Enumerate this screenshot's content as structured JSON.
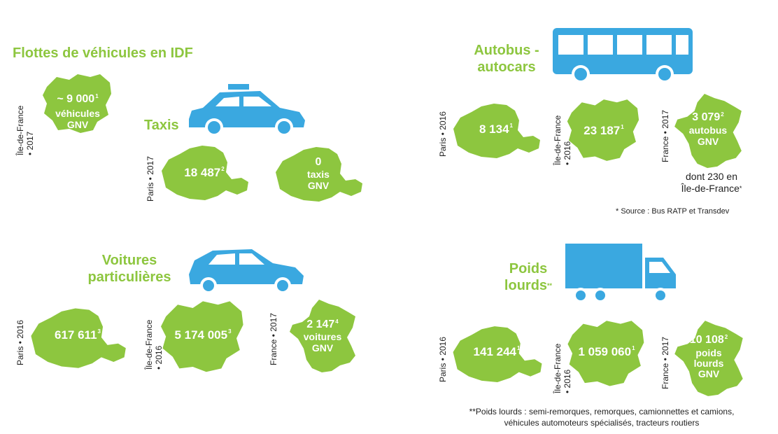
{
  "colors": {
    "green": "#8dc63f",
    "blue": "#3aa8e0",
    "white": "#ffffff",
    "text": "#222222"
  },
  "title": "Flottes de véhicules en IDF",
  "idf_total": {
    "label": "Île-de-France\n• 2017",
    "value": "~ 9 000",
    "sup": "1",
    "line2": "véhicules",
    "line3": "GNV"
  },
  "taxis": {
    "heading": "Taxis",
    "icon": "taxi-icon",
    "label": "Paris • 2017",
    "paris": {
      "value": "18 487",
      "sup": "2"
    },
    "gnv": {
      "value": "0",
      "line2": "taxis",
      "line3": "GNV"
    }
  },
  "voitures": {
    "heading_line1": "Voitures",
    "heading_line2": "particulières",
    "icon": "car-icon",
    "paris": {
      "label": "Paris • 2016",
      "value": "617 611",
      "sup": "3"
    },
    "idf": {
      "label1": "Île-de-France",
      "label2": "• 2016",
      "value": "5 174 005",
      "sup": "3"
    },
    "france": {
      "label": "France • 2017",
      "value": "2 147",
      "sup": "4",
      "line2": "voitures",
      "line3": "GNV"
    }
  },
  "autobus": {
    "heading_line1": "Autobus -",
    "heading_line2": "autocars",
    "icon": "bus-icon",
    "paris": {
      "label": "Paris • 2016",
      "value": "8 134",
      "sup": "1"
    },
    "idf": {
      "label1": "Île-de-France",
      "label2": "• 2016",
      "value": "23 187",
      "sup": "1"
    },
    "france": {
      "label": "France • 2017",
      "value": "3 079",
      "sup": "2",
      "line2": "autobus",
      "line3": "GNV"
    },
    "note_line1": "dont 230 en",
    "note_line2": "Île-de-France",
    "note_sup": "*",
    "source": "* Source : Bus RATP et Transdev"
  },
  "poids": {
    "heading_line1": "Poids",
    "heading_line2": "lourds",
    "heading_sup": "**",
    "icon": "truck-icon",
    "paris": {
      "label": "Paris • 2016",
      "value": "141 244",
      "sup": "1"
    },
    "idf": {
      "label1": "Île-de-France",
      "label2": "• 2016",
      "value": "1 059 060",
      "sup": "1"
    },
    "france": {
      "label": "France • 2017",
      "value": "10 108",
      "sup": "2",
      "line2": "poids",
      "line3": "lourds",
      "line4": "GNV"
    },
    "footnote_line1": "**Poids lourds : semi-remorques, remorques, camionnettes et camions,",
    "footnote_line2": "véhicules automoteurs spécialisés, tracteurs routiers"
  }
}
